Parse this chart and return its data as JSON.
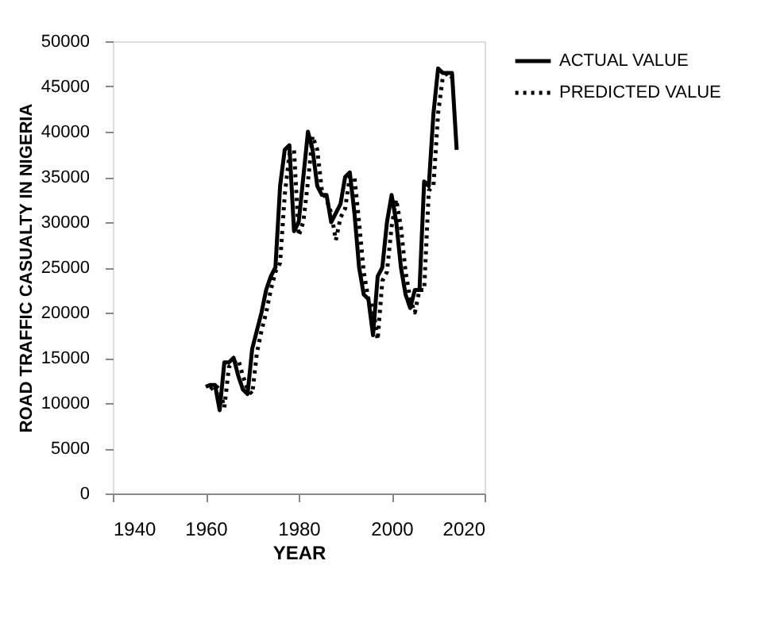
{
  "chart_data": {
    "type": "line",
    "xlabel": "YEAR",
    "ylabel": "ROAD TRAFFIC CASUALTY IN NIGERIA",
    "x": [
      1960,
      1961,
      1962,
      1963,
      1964,
      1965,
      1966,
      1967,
      1968,
      1969,
      1970,
      1971,
      1972,
      1973,
      1974,
      1975,
      1976,
      1977,
      1978,
      1979,
      1980,
      1981,
      1982,
      1983,
      1984,
      1985,
      1986,
      1987,
      1988,
      1989,
      1990,
      1991,
      1992,
      1993,
      1994,
      1995,
      1996,
      1997,
      1998,
      1999,
      2000,
      2001,
      2002,
      2003,
      2004,
      2005,
      2006,
      2007,
      2008,
      2009,
      2010,
      2011,
      2012,
      2013,
      2014
    ],
    "series": [
      {
        "name": "ACTUAL VALUE",
        "color": "#000000",
        "line_style": "solid",
        "values": [
          11800,
          12000,
          12000,
          9200,
          14500,
          14500,
          15000,
          13000,
          11500,
          11000,
          16000,
          18000,
          20000,
          22500,
          24000,
          25000,
          34000,
          38000,
          38500,
          29000,
          30000,
          35000,
          40000,
          38000,
          34000,
          33000,
          33000,
          30000,
          31000,
          32000,
          35000,
          35500,
          31000,
          25000,
          22000,
          21500,
          17500,
          24000,
          25000,
          30000,
          33000,
          30000,
          25000,
          22000,
          20500,
          22500,
          22500,
          34500,
          34000,
          42000,
          47000,
          46500,
          46500,
          46500,
          38000
        ]
      },
      {
        "name": "PREDICTED VALUE",
        "color": "#000000",
        "line_style": "dotted",
        "values": [
          null,
          11500,
          12000,
          11500,
          9500,
          14000,
          14500,
          14800,
          13000,
          11500,
          11000,
          15500,
          18000,
          20000,
          22500,
          24500,
          25500,
          33000,
          37500,
          38000,
          28500,
          30000,
          34500,
          39500,
          38000,
          33500,
          32500,
          31000,
          28000,
          30500,
          31500,
          35000,
          35000,
          30000,
          24500,
          21500,
          20500,
          17000,
          23500,
          24500,
          29500,
          32500,
          29500,
          24500,
          21500,
          20000,
          22500,
          22500,
          33500,
          34000,
          42000,
          46000,
          46500,
          46000,
          null
        ]
      }
    ],
    "xlim": [
      1940,
      2020
    ],
    "xticks": [
      1940,
      1960,
      1980,
      2000,
      2020
    ],
    "ylim": [
      0,
      50000
    ],
    "yticks": [
      0,
      5000,
      10000,
      15000,
      20000,
      25000,
      30000,
      35000,
      40000,
      45000,
      50000
    ],
    "grid": false,
    "legend": "top right",
    "marker": "none"
  }
}
